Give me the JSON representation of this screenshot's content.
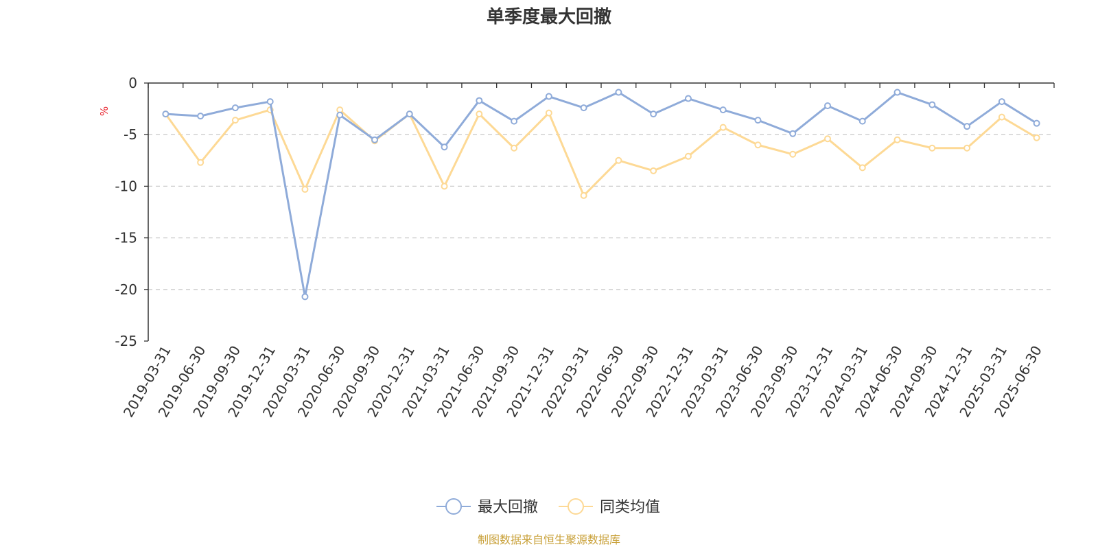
{
  "chart_data": {
    "type": "line",
    "title": "单季度最大回撤",
    "ylabel": "%",
    "ylim": [
      -25,
      0
    ],
    "yticks": [
      0,
      -5,
      -10,
      -15,
      -20,
      -25
    ],
    "categories": [
      "2019-03-31",
      "2019-06-30",
      "2019-09-30",
      "2019-12-31",
      "2020-03-31",
      "2020-06-30",
      "2020-09-30",
      "2020-12-31",
      "2021-03-31",
      "2021-06-30",
      "2021-09-30",
      "2021-12-31",
      "2022-03-31",
      "2022-06-30",
      "2022-09-30",
      "2022-12-31",
      "2023-03-31",
      "2023-06-30",
      "2023-09-30",
      "2023-12-31",
      "2024-03-31",
      "2024-06-30",
      "2024-09-30",
      "2024-12-31",
      "2025-03-31",
      "2025-06-30"
    ],
    "series": [
      {
        "name": "最大回撤",
        "color": "#8fabd9",
        "values": [
          -3.0,
          -3.2,
          -2.4,
          -1.8,
          -20.7,
          -3.1,
          -5.5,
          -3.0,
          -6.2,
          -1.7,
          -3.7,
          -1.3,
          -2.4,
          -0.9,
          -3.0,
          -1.5,
          -2.6,
          -3.6,
          -4.9,
          -2.2,
          -3.7,
          -0.9,
          -2.1,
          -4.2,
          -1.8,
          -3.9
        ]
      },
      {
        "name": "同类均值",
        "color": "#fdd995",
        "values": [
          -3.0,
          -7.7,
          -3.6,
          -2.6,
          -10.3,
          -2.6,
          -5.6,
          -3.0,
          -10.0,
          -3.0,
          -6.3,
          -2.9,
          -10.9,
          -7.5,
          -8.5,
          -7.1,
          -4.3,
          -6.0,
          -6.9,
          -5.4,
          -8.2,
          -5.5,
          -6.3,
          -6.3,
          -3.3,
          -5.3
        ]
      }
    ],
    "grid": true,
    "legend_position": "bottom"
  },
  "source": "制图数据来自恒生聚源数据库"
}
